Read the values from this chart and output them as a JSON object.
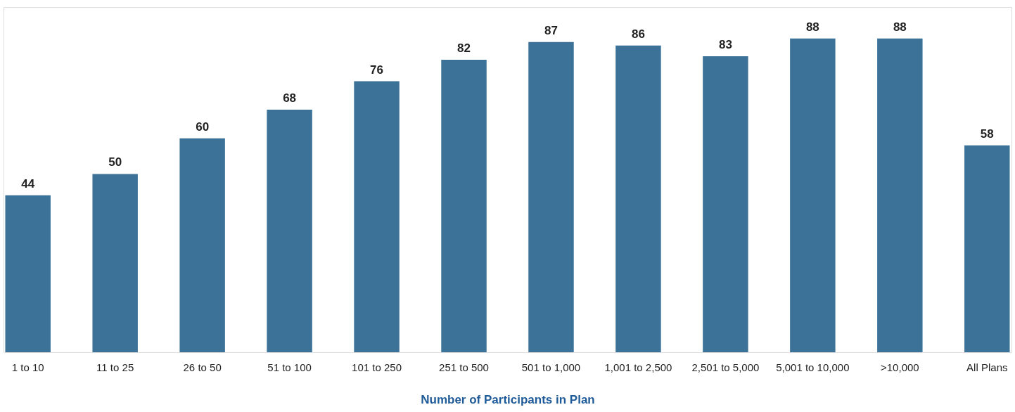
{
  "chart_data": {
    "type": "bar",
    "xlabel": "Number of Participants in Plan",
    "categories": [
      "1 to 10",
      "11 to 25",
      "26 to 50",
      "51 to 100",
      "101 to 250",
      "251 to 500",
      "501 to 1,000",
      "1,001 to 2,500",
      "2,501 to 5,000",
      "5,001 to 10,000",
      ">10,000",
      "All Plans"
    ],
    "values": [
      44,
      50,
      60,
      68,
      76,
      82,
      87,
      86,
      83,
      88,
      88,
      58
    ],
    "color": "#3c7297",
    "data_labels": true,
    "grid": false
  }
}
